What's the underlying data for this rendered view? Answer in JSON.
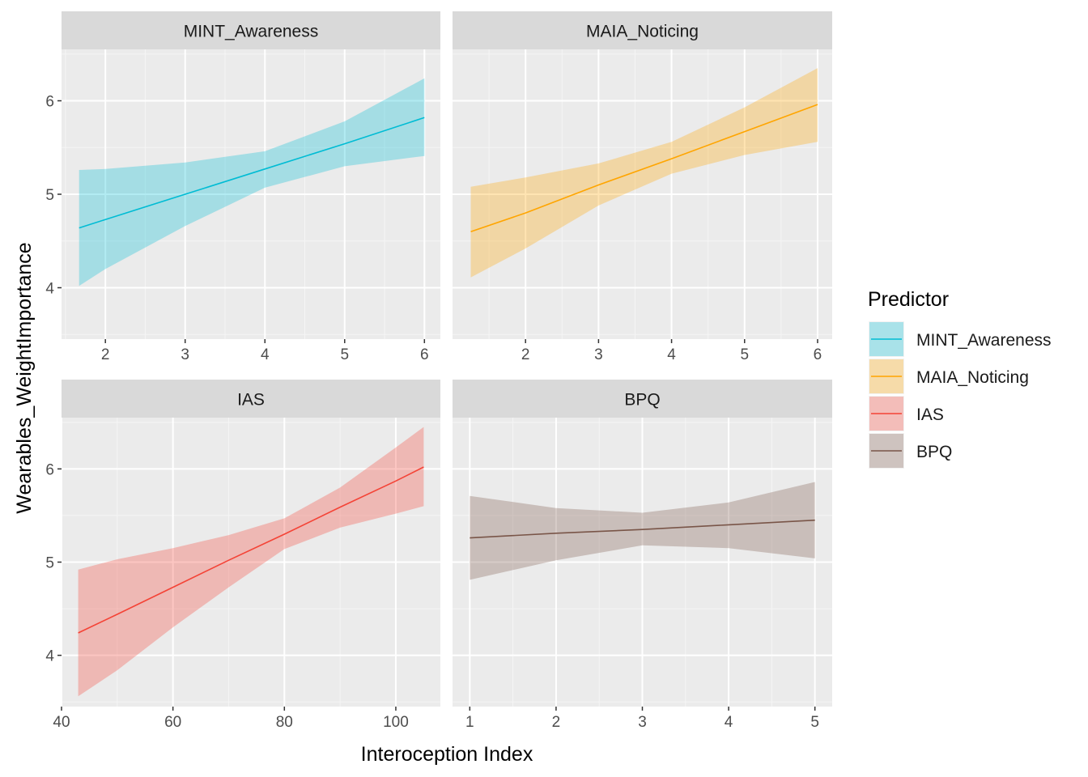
{
  "chart_data": {
    "type": "line",
    "xlabel": "Interoception Index",
    "ylabel": "Wearables_WeightImportance",
    "ylim": [
      3.45,
      6.55
    ],
    "y_ticks": [
      4,
      5,
      6
    ],
    "grid": true,
    "legend": {
      "title": "Predictor",
      "placement": "right",
      "entries": [
        "MINT_Awareness",
        "MAIA_Noticing",
        "IAS",
        "BPQ"
      ]
    },
    "colors": {
      "MINT_Awareness": "#00BCD4",
      "MAIA_Noticing": "#FFA500",
      "IAS": "#F44336",
      "BPQ": "#795548"
    },
    "panels": [
      {
        "title": "MINT_Awareness",
        "xlim": [
          1.45,
          6.2
        ],
        "x_ticks": [
          2,
          3,
          4,
          5,
          6
        ],
        "series": {
          "x": [
            1.67,
            2,
            3,
            4,
            5,
            6
          ],
          "fit": [
            4.64,
            4.73,
            5.0,
            5.27,
            5.54,
            5.82
          ],
          "lower": [
            4.02,
            4.2,
            4.66,
            5.07,
            5.3,
            5.41
          ],
          "upper": [
            5.26,
            5.27,
            5.34,
            5.46,
            5.78,
            6.24
          ]
        }
      },
      {
        "title": "MAIA_Noticing",
        "xlim": [
          1.0,
          6.2
        ],
        "x_ticks": [
          2,
          3,
          4,
          5,
          6
        ],
        "series": {
          "x": [
            1.25,
            2,
            3,
            4,
            5,
            6
          ],
          "fit": [
            4.6,
            4.8,
            5.1,
            5.38,
            5.67,
            5.96
          ],
          "lower": [
            4.11,
            4.42,
            4.88,
            5.22,
            5.42,
            5.56
          ],
          "upper": [
            5.08,
            5.18,
            5.33,
            5.56,
            5.93,
            6.35
          ]
        }
      },
      {
        "title": "IAS",
        "xlim": [
          40,
          108
        ],
        "x_ticks": [
          40,
          60,
          80,
          100
        ],
        "series": {
          "x": [
            43,
            50,
            60,
            70,
            80,
            90,
            100,
            105
          ],
          "fit": [
            4.24,
            4.44,
            4.73,
            5.02,
            5.3,
            5.59,
            5.87,
            6.02
          ],
          "lower": [
            3.56,
            3.84,
            4.3,
            4.73,
            5.14,
            5.37,
            5.52,
            5.6
          ],
          "upper": [
            4.92,
            5.03,
            5.15,
            5.29,
            5.47,
            5.8,
            6.23,
            6.45
          ]
        }
      },
      {
        "title": "BPQ",
        "xlim": [
          0.8,
          5.2
        ],
        "x_ticks": [
          1,
          2,
          3,
          4,
          5
        ],
        "series": {
          "x": [
            1,
            2,
            3,
            4,
            5
          ],
          "fit": [
            5.26,
            5.31,
            5.35,
            5.4,
            5.45
          ],
          "lower": [
            4.81,
            5.02,
            5.18,
            5.15,
            5.04
          ],
          "upper": [
            5.71,
            5.58,
            5.53,
            5.64,
            5.86
          ]
        }
      }
    ]
  }
}
